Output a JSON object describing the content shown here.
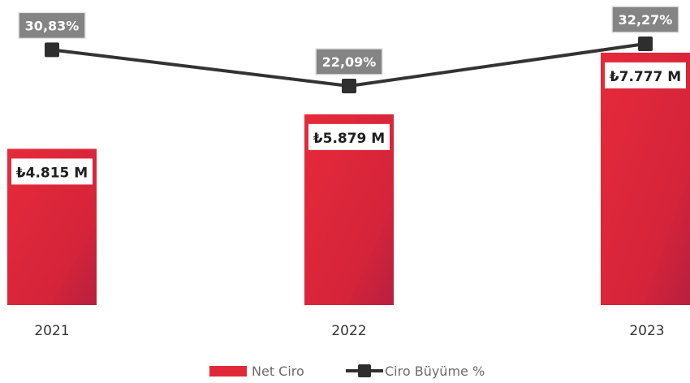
{
  "chart_data": {
    "type": "bar",
    "categories": [
      "2021",
      "2022",
      "2023"
    ],
    "series": [
      {
        "name": "Net Ciro",
        "kind": "bar",
        "values": [
          4815,
          5879,
          7777
        ],
        "labels": [
          "₺4.815 M",
          "₺5.879 M",
          "₺7.777 M"
        ],
        "color": "#e02838"
      },
      {
        "name": "Ciro Büyüme %",
        "kind": "line",
        "values": [
          30.83,
          22.09,
          32.27
        ],
        "labels": [
          "30,83%",
          "22,09%",
          "32,27%"
        ],
        "color": "#333333"
      }
    ],
    "legend": {
      "position": "bottom-center",
      "items": [
        "Net Ciro",
        "Ciro Büyüme %"
      ]
    },
    "grid": false
  }
}
